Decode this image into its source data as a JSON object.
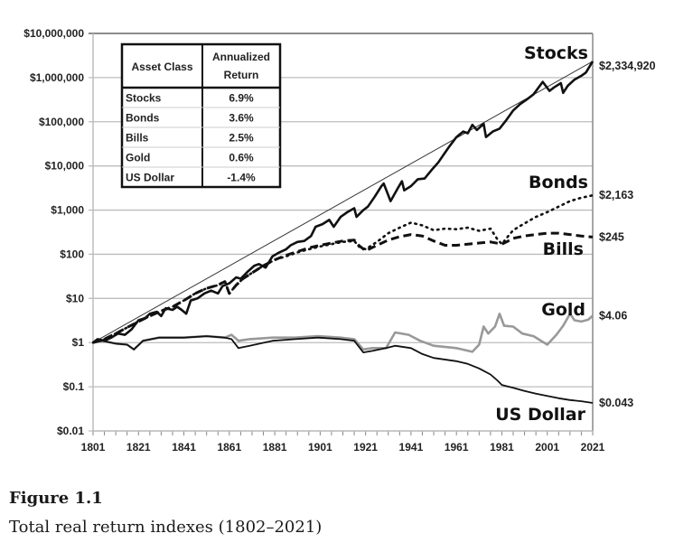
{
  "figure": {
    "title": "Figure 1.1",
    "caption": "Total real return indexes (1802–2021)"
  },
  "chart_data": {
    "type": "line",
    "title": "Total real return indexes (1802–2021)",
    "xlabel": "",
    "ylabel": "",
    "yscale": "log",
    "xlim": [
      1801,
      2021
    ],
    "ylim": [
      0.01,
      10000000
    ],
    "grid": true,
    "x_ticks": [
      "1801",
      "1821",
      "1841",
      "1861",
      "1881",
      "1901",
      "1921",
      "1941",
      "1961",
      "1981",
      "2001",
      "2021"
    ],
    "y_ticks": [
      {
        "value": 10000000,
        "label": "$10,000,000"
      },
      {
        "value": 1000000,
        "label": "$1,000,000"
      },
      {
        "value": 100000,
        "label": "$100,000"
      },
      {
        "value": 10000,
        "label": "$10,000"
      },
      {
        "value": 1000,
        "label": "$1,000"
      },
      {
        "value": 100,
        "label": "$100"
      },
      {
        "value": 10,
        "label": "$10"
      },
      {
        "value": 1,
        "label": "$1"
      },
      {
        "value": 0.1,
        "label": "$0.1"
      },
      {
        "value": 0.01,
        "label": "$0.01"
      }
    ],
    "series": [
      {
        "name": "Stocks",
        "style": "solid-thick",
        "color": "#111111",
        "end_label": "$2,334,920",
        "points": [
          [
            1801,
            1
          ],
          [
            1803,
            1.2
          ],
          [
            1806,
            1.1
          ],
          [
            1809,
            1.3
          ],
          [
            1812,
            1.6
          ],
          [
            1815,
            1.5
          ],
          [
            1818,
            2.0
          ],
          [
            1821,
            3.2
          ],
          [
            1824,
            3.6
          ],
          [
            1826,
            4.5
          ],
          [
            1829,
            5.0
          ],
          [
            1831,
            4.0
          ],
          [
            1833,
            6.0
          ],
          [
            1836,
            5.5
          ],
          [
            1838,
            6.5
          ],
          [
            1840,
            5.5
          ],
          [
            1842,
            4.5
          ],
          [
            1844,
            9.0
          ],
          [
            1847,
            10
          ],
          [
            1850,
            13
          ],
          [
            1853,
            15
          ],
          [
            1856,
            13
          ],
          [
            1858,
            19
          ],
          [
            1861,
            22
          ],
          [
            1864,
            30
          ],
          [
            1866,
            28
          ],
          [
            1869,
            40
          ],
          [
            1872,
            55
          ],
          [
            1874,
            60
          ],
          [
            1877,
            50
          ],
          [
            1880,
            90
          ],
          [
            1883,
            110
          ],
          [
            1886,
            130
          ],
          [
            1888,
            160
          ],
          [
            1891,
            190
          ],
          [
            1894,
            200
          ],
          [
            1897,
            260
          ],
          [
            1899,
            420
          ],
          [
            1902,
            480
          ],
          [
            1905,
            600
          ],
          [
            1907,
            420
          ],
          [
            1910,
            700
          ],
          [
            1913,
            900
          ],
          [
            1916,
            1100
          ],
          [
            1917,
            700
          ],
          [
            1920,
            1000
          ],
          [
            1922,
            1200
          ],
          [
            1925,
            2000
          ],
          [
            1928,
            3500
          ],
          [
            1929,
            4000
          ],
          [
            1932,
            1600
          ],
          [
            1935,
            3000
          ],
          [
            1937,
            4500
          ],
          [
            1938,
            2800
          ],
          [
            1941,
            3500
          ],
          [
            1944,
            5000
          ],
          [
            1947,
            5200
          ],
          [
            1950,
            8000
          ],
          [
            1953,
            12000
          ],
          [
            1956,
            20000
          ],
          [
            1958,
            28000
          ],
          [
            1961,
            45000
          ],
          [
            1964,
            60000
          ],
          [
            1966,
            55000
          ],
          [
            1968,
            85000
          ],
          [
            1970,
            65000
          ],
          [
            1973,
            90000
          ],
          [
            1974,
            45000
          ],
          [
            1977,
            60000
          ],
          [
            1980,
            70000
          ],
          [
            1983,
            110000
          ],
          [
            1986,
            180000
          ],
          [
            1989,
            250000
          ],
          [
            1992,
            320000
          ],
          [
            1995,
            420000
          ],
          [
            1999,
            800000
          ],
          [
            2002,
            500000
          ],
          [
            2004,
            600000
          ],
          [
            2007,
            750000
          ],
          [
            2008,
            450000
          ],
          [
            2010,
            650000
          ],
          [
            2013,
            900000
          ],
          [
            2016,
            1100000
          ],
          [
            2018,
            1300000
          ],
          [
            2021,
            2334920
          ]
        ]
      },
      {
        "name": "Bonds",
        "style": "dotted",
        "color": "#111111",
        "end_label": "$2,163",
        "points": [
          [
            1801,
            1
          ],
          [
            1806,
            1.2
          ],
          [
            1811,
            1.6
          ],
          [
            1816,
            2.2
          ],
          [
            1821,
            3.0
          ],
          [
            1826,
            4.0
          ],
          [
            1831,
            5.2
          ],
          [
            1836,
            6.5
          ],
          [
            1841,
            9
          ],
          [
            1846,
            13
          ],
          [
            1851,
            17
          ],
          [
            1856,
            20
          ],
          [
            1859,
            25
          ],
          [
            1861,
            13
          ],
          [
            1864,
            20
          ],
          [
            1867,
            28
          ],
          [
            1871,
            38
          ],
          [
            1876,
            55
          ],
          [
            1881,
            75
          ],
          [
            1886,
            90
          ],
          [
            1891,
            110
          ],
          [
            1896,
            130
          ],
          [
            1901,
            150
          ],
          [
            1906,
            170
          ],
          [
            1911,
            190
          ],
          [
            1916,
            200
          ],
          [
            1918,
            150
          ],
          [
            1921,
            130
          ],
          [
            1926,
            190
          ],
          [
            1931,
            300
          ],
          [
            1936,
            400
          ],
          [
            1941,
            520
          ],
          [
            1946,
            450
          ],
          [
            1951,
            350
          ],
          [
            1956,
            380
          ],
          [
            1961,
            370
          ],
          [
            1966,
            400
          ],
          [
            1971,
            340
          ],
          [
            1976,
            380
          ],
          [
            1979,
            220
          ],
          [
            1981,
            170
          ],
          [
            1983,
            230
          ],
          [
            1986,
            350
          ],
          [
            1991,
            500
          ],
          [
            1996,
            700
          ],
          [
            2001,
            900
          ],
          [
            2006,
            1200
          ],
          [
            2011,
            1600
          ],
          [
            2016,
            1900
          ],
          [
            2021,
            2163
          ]
        ]
      },
      {
        "name": "Bills",
        "style": "dashed",
        "color": "#111111",
        "end_label": "$245",
        "points": [
          [
            1801,
            1
          ],
          [
            1806,
            1.2
          ],
          [
            1811,
            1.6
          ],
          [
            1816,
            2.2
          ],
          [
            1821,
            3.0
          ],
          [
            1826,
            4.0
          ],
          [
            1831,
            5.2
          ],
          [
            1836,
            6.5
          ],
          [
            1841,
            9
          ],
          [
            1846,
            13
          ],
          [
            1851,
            17
          ],
          [
            1856,
            20
          ],
          [
            1859,
            24
          ],
          [
            1861,
            13
          ],
          [
            1864,
            20
          ],
          [
            1867,
            28
          ],
          [
            1871,
            38
          ],
          [
            1876,
            55
          ],
          [
            1881,
            75
          ],
          [
            1886,
            95
          ],
          [
            1891,
            115
          ],
          [
            1896,
            140
          ],
          [
            1901,
            160
          ],
          [
            1906,
            180
          ],
          [
            1911,
            200
          ],
          [
            1916,
            210
          ],
          [
            1918,
            160
          ],
          [
            1921,
            120
          ],
          [
            1926,
            160
          ],
          [
            1931,
            210
          ],
          [
            1936,
            250
          ],
          [
            1941,
            280
          ],
          [
            1946,
            260
          ],
          [
            1951,
            200
          ],
          [
            1956,
            160
          ],
          [
            1961,
            160
          ],
          [
            1966,
            170
          ],
          [
            1971,
            180
          ],
          [
            1976,
            190
          ],
          [
            1981,
            170
          ],
          [
            1983,
            190
          ],
          [
            1986,
            230
          ],
          [
            1991,
            260
          ],
          [
            1996,
            280
          ],
          [
            2001,
            300
          ],
          [
            2006,
            300
          ],
          [
            2011,
            280
          ],
          [
            2016,
            260
          ],
          [
            2021,
            245
          ]
        ]
      },
      {
        "name": "Gold",
        "style": "solid-gray",
        "color": "#999999",
        "end_label": "$4.06",
        "points": [
          [
            1801,
            1
          ],
          [
            1805,
            1.1
          ],
          [
            1811,
            0.95
          ],
          [
            1816,
            0.9
          ],
          [
            1819,
            0.7
          ],
          [
            1823,
            1.1
          ],
          [
            1830,
            1.3
          ],
          [
            1841,
            1.3
          ],
          [
            1851,
            1.4
          ],
          [
            1859,
            1.3
          ],
          [
            1862,
            1.5
          ],
          [
            1865,
            1.1
          ],
          [
            1870,
            1.2
          ],
          [
            1880,
            1.3
          ],
          [
            1890,
            1.3
          ],
          [
            1900,
            1.4
          ],
          [
            1910,
            1.3
          ],
          [
            1916,
            1.2
          ],
          [
            1920,
            0.7
          ],
          [
            1924,
            0.75
          ],
          [
            1930,
            0.75
          ],
          [
            1934,
            1.7
          ],
          [
            1940,
            1.5
          ],
          [
            1945,
            1.1
          ],
          [
            1951,
            0.85
          ],
          [
            1961,
            0.75
          ],
          [
            1968,
            0.62
          ],
          [
            1971,
            0.9
          ],
          [
            1973,
            2.3
          ],
          [
            1975,
            1.6
          ],
          [
            1978,
            2.3
          ],
          [
            1980,
            4.5
          ],
          [
            1982,
            2.4
          ],
          [
            1986,
            2.3
          ],
          [
            1990,
            1.6
          ],
          [
            1995,
            1.4
          ],
          [
            2001,
            0.9
          ],
          [
            2005,
            1.5
          ],
          [
            2008,
            2.4
          ],
          [
            2011,
            4.5
          ],
          [
            2013,
            3.2
          ],
          [
            2016,
            3.0
          ],
          [
            2019,
            3.3
          ],
          [
            2021,
            4.06
          ]
        ]
      },
      {
        "name": "US Dollar",
        "style": "solid-thin",
        "color": "#111111",
        "end_label": "$0.043",
        "points": [
          [
            1801,
            1
          ],
          [
            1805,
            1.1
          ],
          [
            1811,
            0.95
          ],
          [
            1816,
            0.9
          ],
          [
            1819,
            0.7
          ],
          [
            1823,
            1.1
          ],
          [
            1830,
            1.3
          ],
          [
            1841,
            1.3
          ],
          [
            1851,
            1.4
          ],
          [
            1859,
            1.3
          ],
          [
            1862,
            1.2
          ],
          [
            1865,
            0.75
          ],
          [
            1870,
            0.85
          ],
          [
            1880,
            1.1
          ],
          [
            1890,
            1.2
          ],
          [
            1900,
            1.3
          ],
          [
            1910,
            1.2
          ],
          [
            1916,
            1.1
          ],
          [
            1920,
            0.6
          ],
          [
            1924,
            0.65
          ],
          [
            1930,
            0.75
          ],
          [
            1934,
            0.85
          ],
          [
            1941,
            0.75
          ],
          [
            1946,
            0.55
          ],
          [
            1951,
            0.45
          ],
          [
            1961,
            0.38
          ],
          [
            1966,
            0.33
          ],
          [
            1971,
            0.26
          ],
          [
            1976,
            0.19
          ],
          [
            1979,
            0.14
          ],
          [
            1981,
            0.11
          ],
          [
            1986,
            0.095
          ],
          [
            1991,
            0.08
          ],
          [
            1996,
            0.07
          ],
          [
            2001,
            0.062
          ],
          [
            2006,
            0.055
          ],
          [
            2011,
            0.05
          ],
          [
            2016,
            0.047
          ],
          [
            2021,
            0.043
          ]
        ]
      }
    ],
    "trendline": {
      "name": "Stocks trend",
      "rate_percent": 6.9,
      "start": [
        1801,
        1
      ],
      "end": [
        2021,
        2334920
      ]
    },
    "series_labels": [
      "Stocks",
      "Bonds",
      "Bills",
      "Gold",
      "US Dollar"
    ],
    "table": {
      "headers": [
        "Asset Class",
        "Annualized Return"
      ],
      "rows": [
        [
          "Stocks",
          "6.9%"
        ],
        [
          "Bonds",
          "3.6%"
        ],
        [
          "Bills",
          "2.5%"
        ],
        [
          "Gold",
          "0.6%"
        ],
        [
          "US Dollar",
          "-1.4%"
        ]
      ]
    }
  }
}
